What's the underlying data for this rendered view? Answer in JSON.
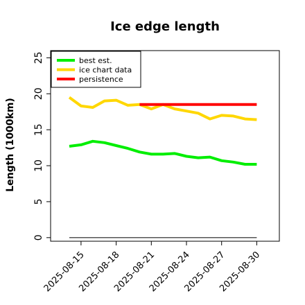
{
  "chart_data": {
    "type": "line",
    "title": "Ice edge length",
    "ylabel": "Length (1000km)",
    "xlabel": "",
    "x": [
      "2025-08-14",
      "2025-08-15",
      "2025-08-16",
      "2025-08-17",
      "2025-08-18",
      "2025-08-19",
      "2025-08-20",
      "2025-08-21",
      "2025-08-22",
      "2025-08-23",
      "2025-08-24",
      "2025-08-25",
      "2025-08-26",
      "2025-08-27",
      "2025-08-28",
      "2025-08-29",
      "2025-08-30"
    ],
    "xticks": [
      "2025-08-15",
      "2025-08-18",
      "2025-08-21",
      "2025-08-24",
      "2025-08-27",
      "2025-08-30"
    ],
    "yticks": [
      0,
      5,
      10,
      15,
      20,
      25
    ],
    "ylim": [
      -0.5,
      26
    ],
    "legend_position": "top-left",
    "series": [
      {
        "name": "best est.",
        "color": "#00ee00",
        "values": [
          12.7,
          12.9,
          13.4,
          13.2,
          12.8,
          12.4,
          11.9,
          11.6,
          11.6,
          11.7,
          11.3,
          11.1,
          11.2,
          10.7,
          10.5,
          10.2,
          10.2
        ]
      },
      {
        "name": "ice chart data",
        "color": "#ffd700",
        "values": [
          19.5,
          18.3,
          18.1,
          19.0,
          19.1,
          18.4,
          18.5,
          17.9,
          18.5,
          17.9,
          17.6,
          17.3,
          16.5,
          17.0,
          16.9,
          16.5,
          16.4
        ]
      },
      {
        "name": "persistence",
        "color": "#ff0000",
        "x": [
          "2025-08-20",
          "2025-08-30"
        ],
        "values": [
          18.5,
          18.5
        ]
      },
      {
        "name": "",
        "color": "#555555",
        "values": [
          0,
          0,
          0,
          0,
          0,
          0,
          0,
          0,
          0,
          0,
          0,
          0,
          0,
          0,
          0,
          0,
          0
        ]
      }
    ]
  }
}
